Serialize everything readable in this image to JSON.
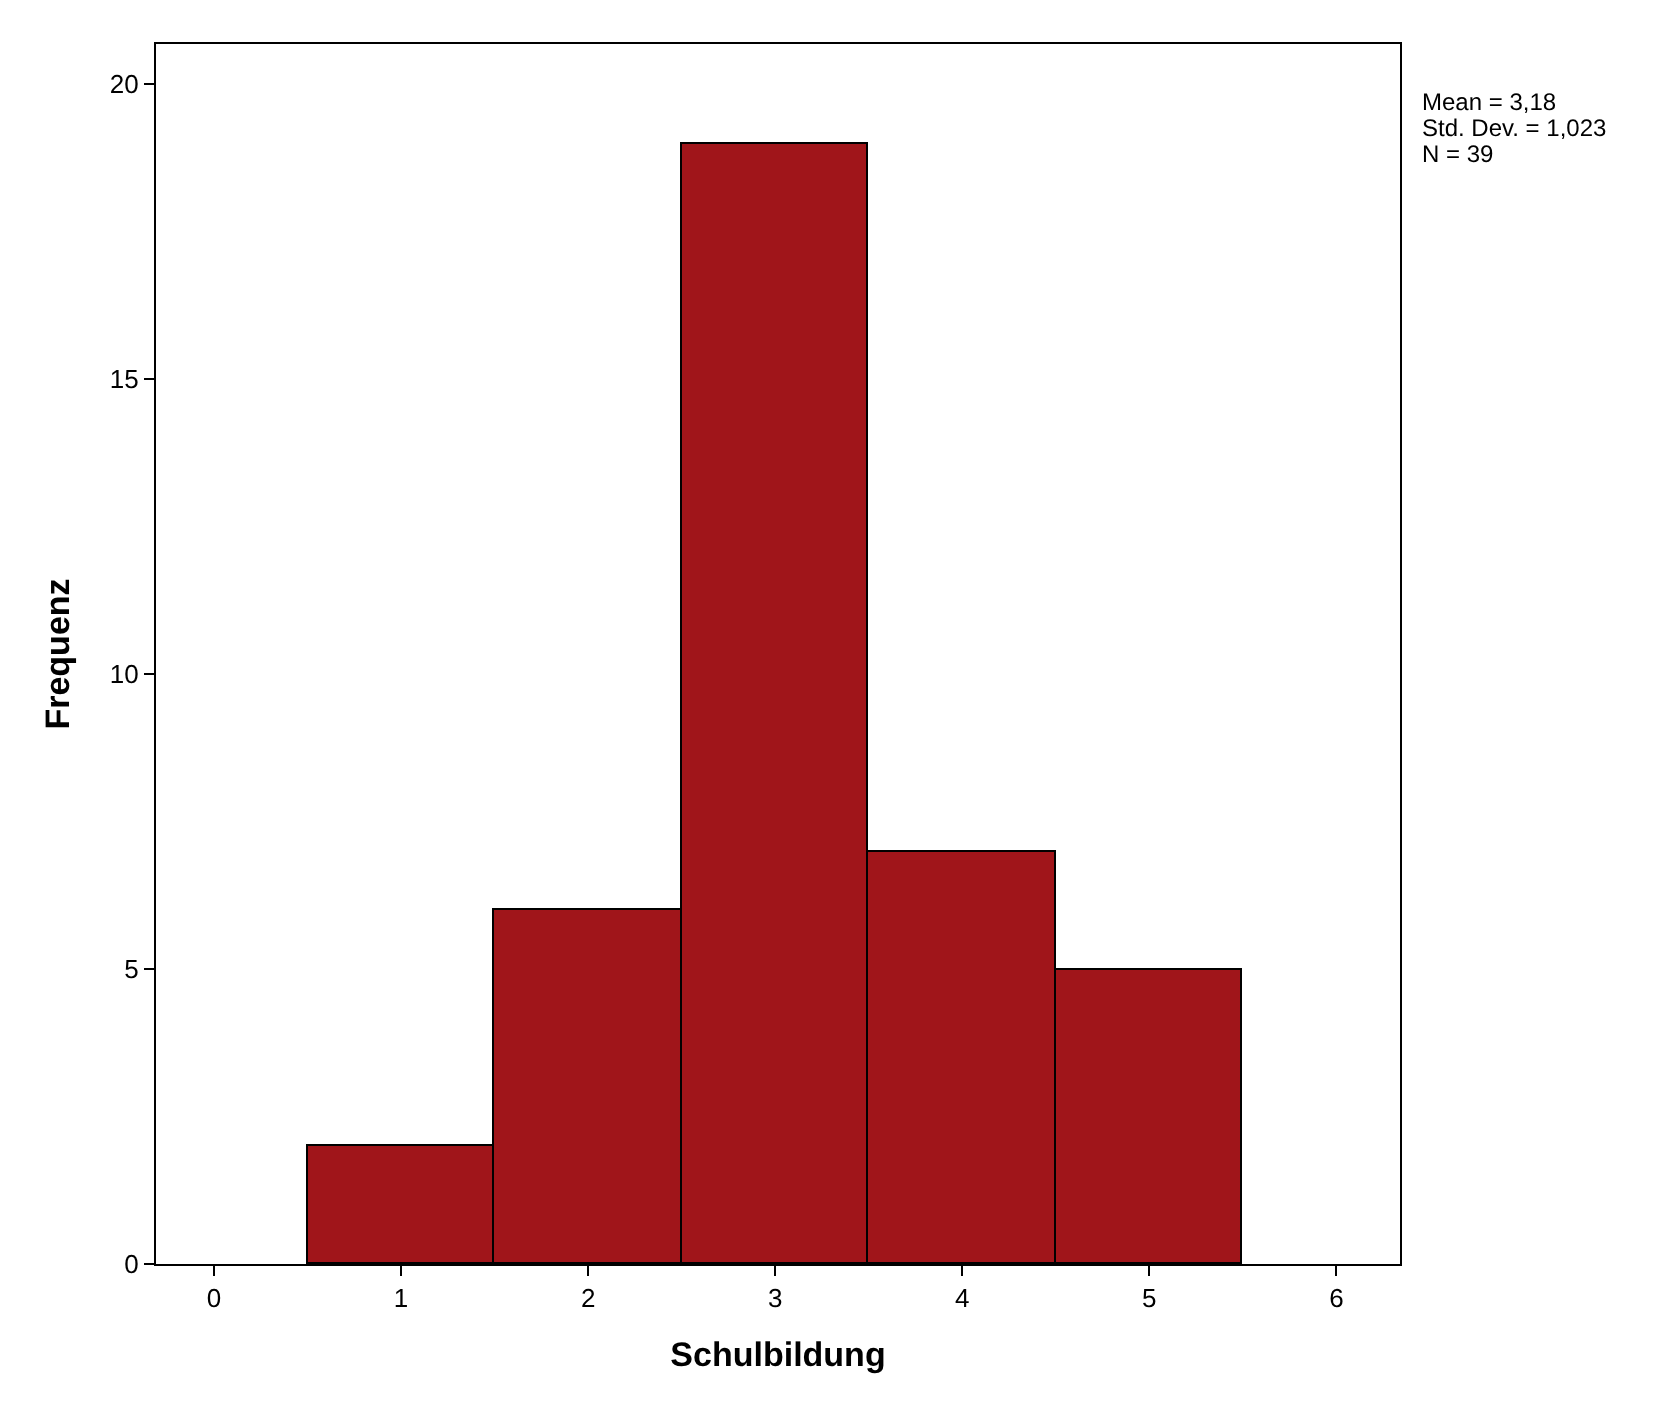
{
  "chart_data": {
    "type": "histogram",
    "xlabel": "Schulbildung",
    "ylabel": "Frequenz",
    "bins": [
      0.5,
      1.5,
      2.5,
      3.5,
      4.5,
      5.5
    ],
    "values": [
      2,
      6,
      19,
      7,
      5
    ],
    "color": "#a0151a",
    "xlim": [
      -0.31,
      6.34
    ],
    "xticks": [
      0,
      1,
      2,
      3,
      4,
      5,
      6
    ],
    "ylim": [
      0,
      20.68
    ],
    "yticks": [
      0,
      5,
      10,
      15,
      20
    ],
    "annotations": [
      "Mean = 3,18",
      "Std. Dev. = 1,023",
      "N = 39"
    ]
  }
}
